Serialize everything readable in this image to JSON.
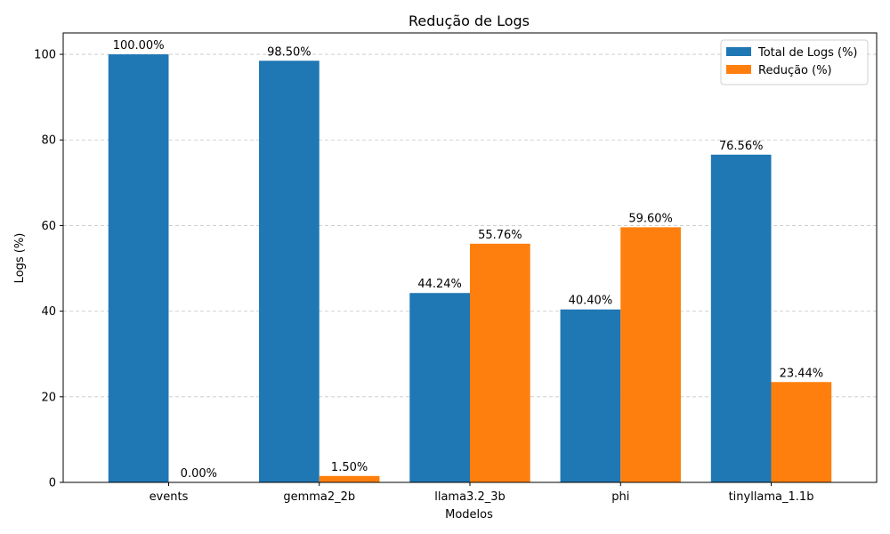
{
  "chart_data": {
    "type": "bar",
    "title": "Redução de Logs",
    "xlabel": "Modelos",
    "ylabel": "Logs (%)",
    "categories": [
      "events",
      "gemma2_2b",
      "llama3.2_3b",
      "phi",
      "tinyllama_1.1b"
    ],
    "series": [
      {
        "name": "Total de Logs (%)",
        "color": "#1f77b4",
        "values": [
          100.0,
          98.5,
          44.24,
          40.4,
          76.56
        ],
        "labels": [
          "100.00%",
          "98.50%",
          "44.24%",
          "40.40%",
          "76.56%"
        ]
      },
      {
        "name": "Redução (%)",
        "color": "#ff7f0e",
        "values": [
          0.0,
          1.5,
          55.76,
          59.6,
          23.44
        ],
        "labels": [
          "0.00%",
          "1.50%",
          "55.76%",
          "59.60%",
          "23.44%"
        ]
      }
    ],
    "ylim": [
      0,
      105
    ],
    "yticks": [
      0,
      20,
      40,
      60,
      80,
      100
    ],
    "grid": "y-dashed",
    "legend_position": "top-right"
  }
}
